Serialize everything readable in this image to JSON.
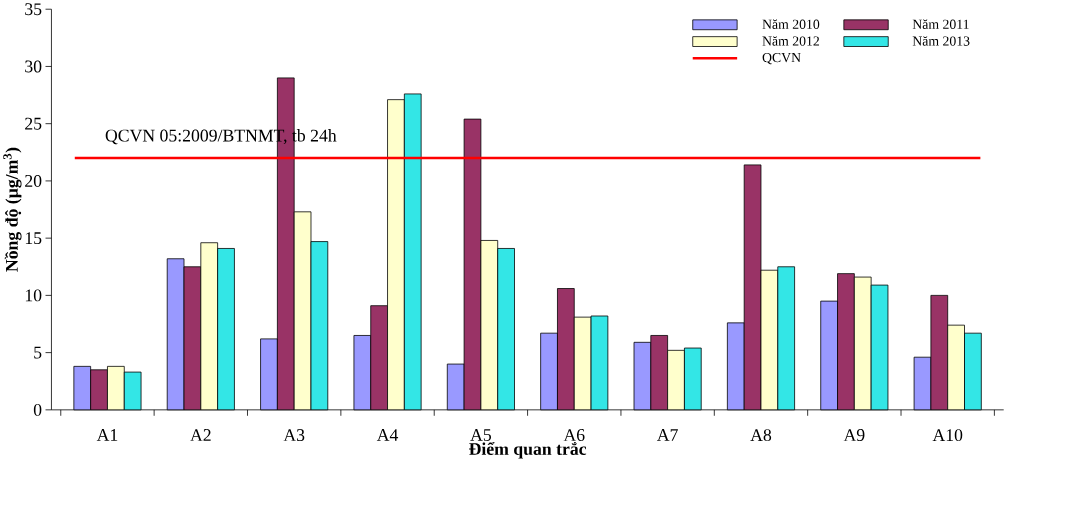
{
  "chart_data": {
    "type": "bar",
    "xlabel": "Điểm quan trắc",
    "ylabel": "Nồng độ (µg/m$^{3}$)",
    "categories": [
      "A1",
      "A2",
      "A3",
      "A4",
      "A5",
      "A6",
      "A7",
      "A8",
      "A9",
      "A10"
    ],
    "series": [
      {
        "name": "Năm 2010",
        "color": "#9999ff",
        "values": [
          3.8,
          13.2,
          6.2,
          6.5,
          4.0,
          6.7,
          5.9,
          7.6,
          9.5,
          4.6
        ]
      },
      {
        "name": "Năm 2011",
        "color": "#993366",
        "values": [
          3.5,
          12.5,
          29.0,
          9.1,
          25.4,
          10.6,
          6.5,
          21.4,
          11.9,
          10.0
        ]
      },
      {
        "name": "Năm 2012",
        "color": "#ffffcc",
        "values": [
          3.8,
          14.6,
          17.3,
          27.1,
          14.8,
          8.1,
          5.2,
          12.2,
          11.6,
          7.4
        ]
      },
      {
        "name": "Năm 2013",
        "color": "#33e6e6",
        "values": [
          3.3,
          14.1,
          14.7,
          27.6,
          14.1,
          8.2,
          5.4,
          12.5,
          10.9,
          6.7
        ]
      }
    ],
    "ref_lines": [
      {
        "axis": "y",
        "value": 22,
        "label": "QCVN",
        "color": "#ff0000"
      }
    ],
    "annotations": [
      "QCVN 05:2009/BTNMT, tb 24h"
    ],
    "ylim": [
      0,
      35
    ],
    "yticks": [
      0,
      5,
      10,
      15,
      20,
      25,
      30,
      35
    ],
    "grid": false,
    "legend": "top right"
  }
}
